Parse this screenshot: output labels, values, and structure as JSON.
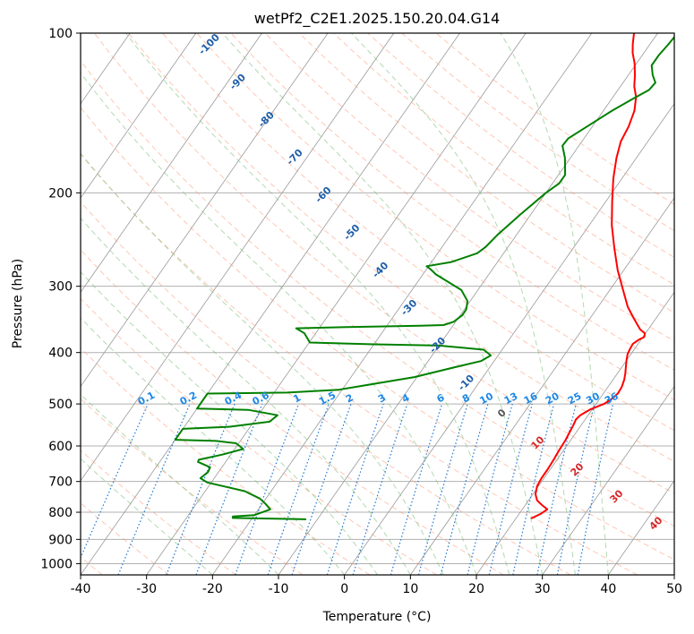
{
  "chart_data": {
    "type": "line",
    "subtype": "skew-t log-p sounding",
    "title": "wetPf2_C2E1.2025.150.20.04.G14",
    "xlabel": "Temperature (°C)",
    "ylabel": "Pressure (hPa)",
    "xlim": [
      -40,
      50
    ],
    "ylim": [
      1050,
      100
    ],
    "y_scale": "log",
    "grid": true,
    "x_ticks": [
      "-40",
      "-30",
      "-20",
      "-10",
      "0",
      "10",
      "20",
      "30",
      "40",
      "50"
    ],
    "y_ticks": [
      "100",
      "200",
      "300",
      "400",
      "500",
      "600",
      "700",
      "800",
      "900",
      "1000"
    ],
    "series": [
      {
        "color": "#ff0000",
        "points": [
          [
            22.3,
            822
          ],
          [
            23.3,
            805
          ],
          [
            23.8,
            790
          ],
          [
            22.5,
            775
          ],
          [
            21.3,
            760
          ],
          [
            20.4,
            740
          ],
          [
            19.8,
            715
          ],
          [
            19.6,
            690
          ],
          [
            19.6,
            665
          ],
          [
            19.5,
            640
          ],
          [
            19.3,
            610
          ],
          [
            19.2,
            585
          ],
          [
            19.0,
            565
          ],
          [
            18.8,
            548
          ],
          [
            18.6,
            535
          ],
          [
            18.8,
            525
          ],
          [
            19.7,
            512
          ],
          [
            21.2,
            500
          ],
          [
            21.8,
            490
          ],
          [
            22.2,
            478
          ],
          [
            22.1,
            465
          ],
          [
            21.7,
            450
          ],
          [
            21.2,
            438
          ],
          [
            20.6,
            426
          ],
          [
            20.0,
            414
          ],
          [
            19.5,
            403
          ],
          [
            19.3,
            393
          ],
          [
            19.2,
            385
          ],
          [
            19.7,
            378
          ],
          [
            20.2,
            374
          ],
          [
            19.9,
            368
          ],
          [
            18.8,
            362
          ],
          [
            17.8,
            354
          ],
          [
            16.4,
            343
          ],
          [
            14.5,
            328
          ],
          [
            11.9,
            304
          ],
          [
            9.1,
            280
          ],
          [
            6.2,
            254
          ],
          [
            3.4,
            230
          ],
          [
            1.0,
            208
          ],
          [
            -1.3,
            188
          ],
          [
            -3.0,
            172
          ],
          [
            -4.1,
            160
          ],
          [
            -4.5,
            150
          ],
          [
            -5.3,
            140
          ],
          [
            -6.5,
            132
          ],
          [
            -7.9,
            126
          ],
          [
            -9.0,
            120
          ],
          [
            -10.3,
            114
          ],
          [
            -11.7,
            109
          ],
          [
            -12.6,
            105
          ],
          [
            -13.6,
            100
          ]
        ]
      },
      {
        "color": "#008000",
        "points": [
          [
            -11.7,
            825
          ],
          [
            -23.0,
            820
          ],
          [
            -23.1,
            815
          ],
          [
            -20.0,
            810
          ],
          [
            -18.2,
            790
          ],
          [
            -19.6,
            770
          ],
          [
            -20.9,
            754
          ],
          [
            -24.0,
            730
          ],
          [
            -30.6,
            703
          ],
          [
            -32.1,
            690
          ],
          [
            -31.6,
            672
          ],
          [
            -31.8,
            658
          ],
          [
            -34.2,
            643
          ],
          [
            -34.3,
            637
          ],
          [
            -31.3,
            623
          ],
          [
            -28.7,
            608
          ],
          [
            -30.4,
            593
          ],
          [
            -33.7,
            587
          ],
          [
            -40.0,
            584
          ],
          [
            -40.0,
            557
          ],
          [
            -33.2,
            552
          ],
          [
            -27.6,
            540
          ],
          [
            -27.1,
            525
          ],
          [
            -32.1,
            513
          ],
          [
            -40.0,
            510
          ],
          [
            -40.0,
            478
          ],
          [
            -28.0,
            476
          ],
          [
            -20.5,
            470
          ],
          [
            -16.5,
            460
          ],
          [
            -10.4,
            445
          ],
          [
            -5.8,
            428
          ],
          [
            -2.0,
            415
          ],
          [
            -1.1,
            405
          ],
          [
            -2.8,
            395
          ],
          [
            -10.0,
            388
          ],
          [
            -20.0,
            386
          ],
          [
            -29.9,
            383
          ],
          [
            -31.7,
            368
          ],
          [
            -33.5,
            360
          ],
          [
            -25.0,
            358
          ],
          [
            -15.0,
            356
          ],
          [
            -11.5,
            355
          ],
          [
            -10.3,
            350
          ],
          [
            -9.7,
            340
          ],
          [
            -9.7,
            332
          ],
          [
            -10.4,
            320
          ],
          [
            -12.5,
            305
          ],
          [
            -18.0,
            285
          ],
          [
            -19.3,
            279
          ],
          [
            -20.3,
            275
          ],
          [
            -17.0,
            270
          ],
          [
            -14.0,
            260
          ],
          [
            -13.4,
            253
          ],
          [
            -12.9,
            240
          ],
          [
            -11.6,
            220
          ],
          [
            -10.0,
            200
          ],
          [
            -9.0,
            192
          ],
          [
            -9.0,
            185
          ],
          [
            -10.8,
            172
          ],
          [
            -12.5,
            163
          ],
          [
            -12.4,
            158
          ],
          [
            -11.2,
            152
          ],
          [
            -8.7,
            140
          ],
          [
            -6.8,
            133
          ],
          [
            -5.3,
            128
          ],
          [
            -5.1,
            124
          ],
          [
            -6.3,
            120
          ],
          [
            -7.5,
            115
          ],
          [
            -7.5,
            110
          ],
          [
            -7.2,
            105
          ],
          [
            -7.0,
            100
          ]
        ]
      }
    ],
    "dry_adiabat_labels": [
      "-100",
      "-90",
      "-80",
      "-70",
      "-60",
      "-50",
      "-40",
      "-30",
      "-20",
      "-10",
      "0",
      "10",
      "20",
      "30",
      "40"
    ],
    "mixing_ratio_labels": [
      "0.1",
      "0.2",
      "0.4",
      "0.6",
      "1",
      "1.5",
      "2",
      "3",
      "4",
      "6",
      "8",
      "10",
      "13",
      "16",
      "20",
      "25",
      "30",
      "36"
    ],
    "colors": {
      "dry_adiabat": "#ff9977",
      "moist_adiabat": "#7fbf7f",
      "mixing_ratio": "#1f77d4",
      "isotherm": "#999999",
      "cold_label": "#1f5fa8",
      "warm_label": "#d62728",
      "zero_label": "#555555",
      "mixing_label": "#1e88e5"
    }
  }
}
